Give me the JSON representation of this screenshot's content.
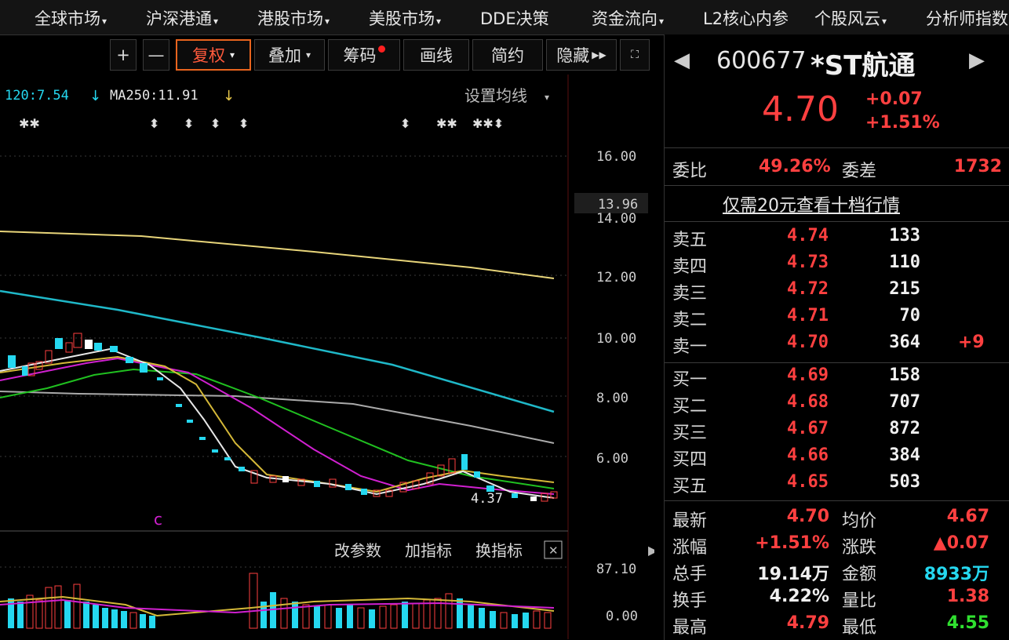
{
  "menu": [
    {
      "label": "全球市场",
      "caret": true
    },
    {
      "label": "沪深港通",
      "caret": true
    },
    {
      "label": "港股市场",
      "caret": true
    },
    {
      "label": "美股市场",
      "caret": true
    },
    {
      "label": "DDE决策",
      "caret": false
    },
    {
      "label": "资金流向",
      "caret": true
    },
    {
      "label": "L2核心内参",
      "caret": false
    },
    {
      "label": "个股风云",
      "caret": true
    },
    {
      "label": "分析师指数",
      "caret": false
    }
  ],
  "toolbar": {
    "plus": "+",
    "minus": "—",
    "fuquan": "复权",
    "diejia": "叠加",
    "chouma": "筹码",
    "huaxian": "画线",
    "jianyue": "简约",
    "yincang": "隐藏"
  },
  "ma_line": {
    "ma120": "120:7.54",
    "ma250": "MA250:11.91",
    "settings": "设置均线"
  },
  "yaxis": {
    "labels": [
      "16.00",
      "14.00",
      "12.00",
      "10.00",
      "8.00",
      "6.00"
    ],
    "current": "13.96"
  },
  "annotation": {
    "low": "4.37",
    "marker": "c"
  },
  "indicator": {
    "change_params": "改参数",
    "add_indicator": "加指标",
    "switch_indicator": "换指标",
    "close": "✕",
    "top": "87.10",
    "bottom": "0.00"
  },
  "stock": {
    "code": "600677",
    "name": "*ST航通",
    "price": "4.70",
    "change": "+0.07",
    "change_pct": "+1.51%"
  },
  "weibi": {
    "label": "委比",
    "value": "49.26%",
    "diff_label": "委差",
    "diff_value": "1732"
  },
  "promo": "仅需20元查看十档行情",
  "asks": [
    {
      "label": "卖五",
      "price": "4.74",
      "vol": "133",
      "extra": ""
    },
    {
      "label": "卖四",
      "price": "4.73",
      "vol": "110",
      "extra": ""
    },
    {
      "label": "卖三",
      "price": "4.72",
      "vol": "215",
      "extra": ""
    },
    {
      "label": "卖二",
      "price": "4.71",
      "vol": "70",
      "extra": ""
    },
    {
      "label": "卖一",
      "price": "4.70",
      "vol": "364",
      "extra": "+9"
    }
  ],
  "bids": [
    {
      "label": "买一",
      "price": "4.69",
      "vol": "158"
    },
    {
      "label": "买二",
      "price": "4.68",
      "vol": "707"
    },
    {
      "label": "买三",
      "price": "4.67",
      "vol": "872"
    },
    {
      "label": "买四",
      "price": "4.66",
      "vol": "384"
    },
    {
      "label": "买五",
      "price": "4.65",
      "vol": "503"
    }
  ],
  "stats": [
    {
      "l1": "最新",
      "v1": "4.70",
      "c1": "#ff4040",
      "l2": "均价",
      "v2": "4.67",
      "c2": "#ff4040"
    },
    {
      "l1": "涨幅",
      "v1": "+1.51%",
      "c1": "#ff4040",
      "l2": "涨跌",
      "v2": "▲0.07",
      "c2": "#ff4040"
    },
    {
      "l1": "总手",
      "v1": "19.14万",
      "c1": "#f0f0f0",
      "l2": "金额",
      "v2": "8933万",
      "c2": "#25d8f0"
    },
    {
      "l1": "换手",
      "v1": "4.22%",
      "c1": "#f0f0f0",
      "l2": "量比",
      "v2": "1.38",
      "c2": "#ff4040"
    },
    {
      "l1": "最高",
      "v1": "4.79",
      "c1": "#ff4040",
      "l2": "最低",
      "v2": "4.55",
      "c2": "#30e030"
    }
  ],
  "colors": {
    "up": "#ff4040",
    "down": "#25d8f0",
    "accent": "#e8641e"
  }
}
